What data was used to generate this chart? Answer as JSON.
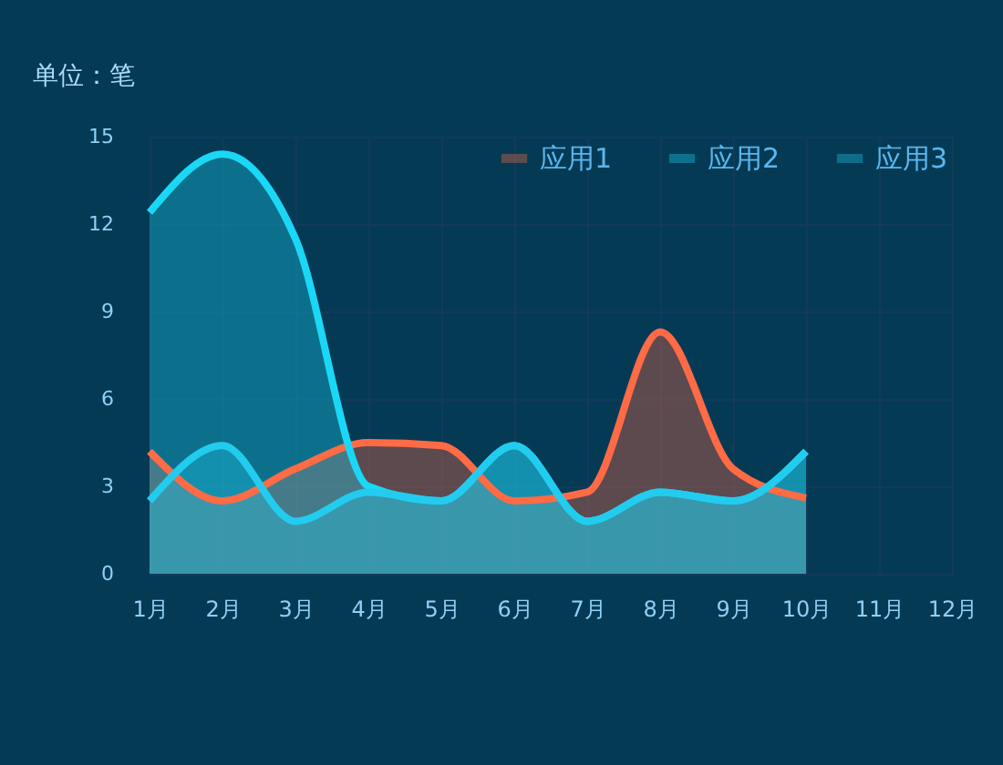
{
  "chart_data": {
    "type": "area",
    "title": "单位：笔",
    "categories": [
      "1月",
      "2月",
      "3月",
      "4月",
      "5月",
      "6月",
      "7月",
      "8月",
      "9月",
      "10月",
      "11月",
      "12月"
    ],
    "series": [
      {
        "name": "应用1",
        "color": "#ff6b45",
        "values": [
          4.2,
          2.5,
          3.6,
          4.5,
          4.4,
          2.5,
          2.8,
          8.3,
          3.6,
          2.6,
          null,
          null
        ]
      },
      {
        "name": "应用2",
        "color": "#1ad8f5",
        "values": [
          12.4,
          14.4,
          11.5,
          3.0,
          2.5,
          4.4,
          1.8,
          2.8,
          2.5,
          4.2,
          null,
          null
        ]
      },
      {
        "name": "应用3",
        "color": "#22ccee",
        "values": [
          2.5,
          4.4,
          1.8,
          2.8,
          2.5,
          4.4,
          1.8,
          2.8,
          2.5,
          4.2,
          null,
          null
        ]
      }
    ],
    "ylim": [
      0,
      15
    ],
    "yticks": [
      0,
      3,
      6,
      9,
      12,
      15
    ],
    "grid": true,
    "legend": "top right"
  }
}
